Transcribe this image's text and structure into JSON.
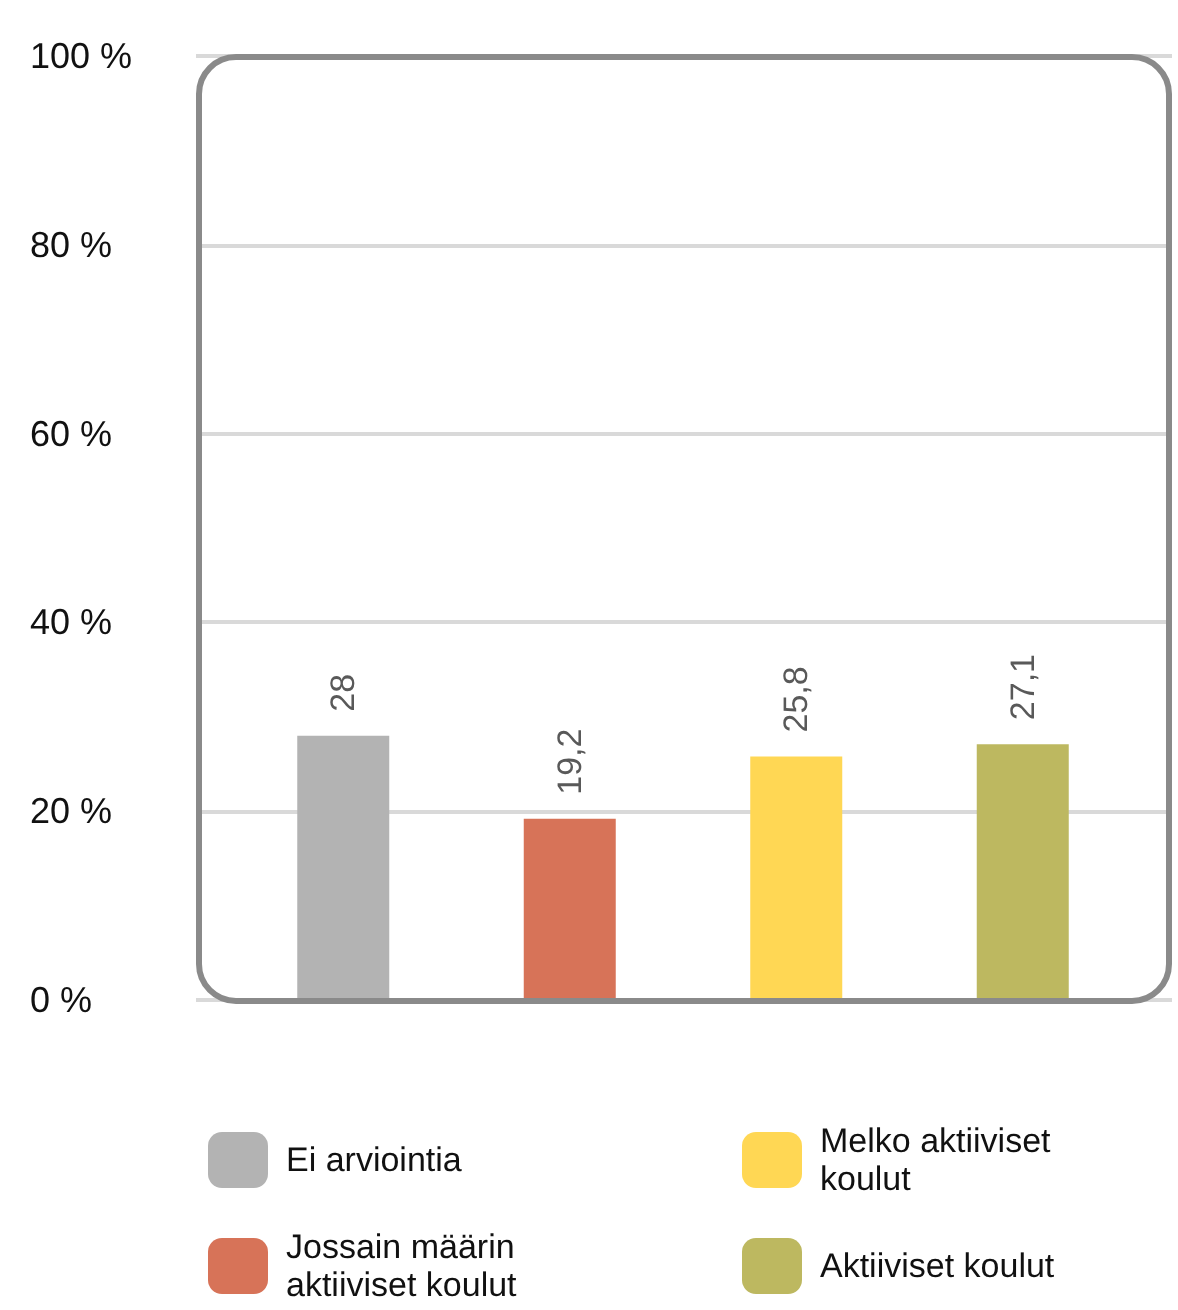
{
  "chart_data": {
    "type": "bar",
    "categories": [
      null,
      null,
      null,
      null
    ],
    "series": [
      {
        "name": "Ei arviointia",
        "color": "#b3b3b3",
        "values": [
          28,
          null,
          null,
          null
        ],
        "value_labels": [
          "28",
          null,
          null,
          null
        ]
      },
      {
        "name": "Jossain määrin aktiiviset koulut",
        "color": "#d77358",
        "values": [
          null,
          19.2,
          null,
          null
        ],
        "value_labels": [
          null,
          "19,2",
          null,
          null
        ]
      },
      {
        "name": "Melko aktiiviset koulut",
        "color": "#ffd754",
        "values": [
          null,
          null,
          25.8,
          null
        ],
        "value_labels": [
          null,
          null,
          "25,8",
          null
        ]
      },
      {
        "name": "Aktiiviset koulut",
        "color": "#bdb860",
        "values": [
          null,
          null,
          null,
          27.1
        ],
        "value_labels": [
          null,
          null,
          null,
          "27,1"
        ]
      }
    ],
    "ylim": [
      0,
      100
    ],
    "yticks": [
      {
        "value": 0,
        "label": "0 %"
      },
      {
        "value": 20,
        "label": "20 %"
      },
      {
        "value": 40,
        "label": "40 %"
      },
      {
        "value": 60,
        "label": "60 %"
      },
      {
        "value": 80,
        "label": "80 %"
      },
      {
        "value": 100,
        "label": "100 %"
      }
    ],
    "grid": "y",
    "legend": "bottom"
  }
}
